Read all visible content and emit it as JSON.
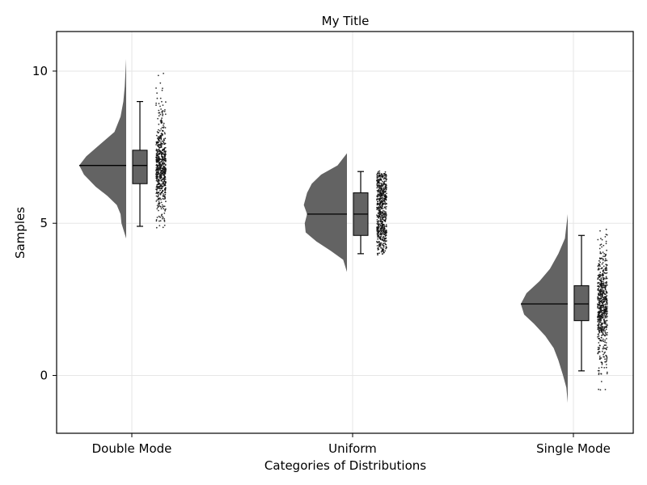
{
  "chart_data": {
    "type": "raincloud",
    "title": "My Title",
    "xlabel": "Categories of Distributions",
    "ylabel": "Samples",
    "ylim": [
      -1.9,
      11.3
    ],
    "yticks": [
      0,
      5,
      10
    ],
    "grid": true,
    "colors": {
      "fill": "#636363",
      "points": "#111111",
      "frame": "#000000",
      "grid": "#e6e6e6"
    },
    "categories": [
      "Double Mode",
      "Uniform",
      "Single Mode"
    ],
    "distributions": [
      {
        "category": "Double Mode",
        "min": 4.9,
        "q1": 6.3,
        "median": 6.9,
        "q3": 7.4,
        "max": 9.0,
        "range": [
          4.85,
          10.0
        ],
        "density_profile": [
          [
            4.5,
            0.0
          ],
          [
            5.0,
            0.1
          ],
          [
            5.3,
            0.12
          ],
          [
            5.6,
            0.2
          ],
          [
            5.9,
            0.4
          ],
          [
            6.2,
            0.65
          ],
          [
            6.6,
            0.9
          ],
          [
            6.9,
            1.0
          ],
          [
            7.2,
            0.85
          ],
          [
            7.6,
            0.55
          ],
          [
            8.0,
            0.25
          ],
          [
            8.5,
            0.12
          ],
          [
            9.0,
            0.06
          ],
          [
            9.5,
            0.03
          ],
          [
            10.4,
            0.0
          ]
        ]
      },
      {
        "category": "Uniform",
        "min": 4.0,
        "q1": 4.6,
        "median": 5.3,
        "q3": 6.0,
        "max": 6.7,
        "range": [
          3.95,
          6.75
        ],
        "density_profile": [
          [
            3.4,
            0.0
          ],
          [
            3.8,
            0.08
          ],
          [
            4.1,
            0.35
          ],
          [
            4.4,
            0.65
          ],
          [
            4.7,
            0.88
          ],
          [
            5.0,
            0.9
          ],
          [
            5.3,
            0.85
          ],
          [
            5.6,
            0.92
          ],
          [
            6.0,
            0.85
          ],
          [
            6.3,
            0.75
          ],
          [
            6.6,
            0.55
          ],
          [
            6.9,
            0.2
          ],
          [
            7.3,
            0.0
          ]
        ]
      },
      {
        "category": "Single Mode",
        "min": 0.15,
        "q1": 1.8,
        "median": 2.35,
        "q3": 2.95,
        "max": 4.6,
        "range": [
          -0.55,
          4.8
        ],
        "density_profile": [
          [
            -0.9,
            0.0
          ],
          [
            -0.4,
            0.03
          ],
          [
            0.0,
            0.1
          ],
          [
            0.5,
            0.2
          ],
          [
            0.9,
            0.3
          ],
          [
            1.3,
            0.48
          ],
          [
            1.7,
            0.72
          ],
          [
            2.0,
            0.93
          ],
          [
            2.35,
            1.0
          ],
          [
            2.7,
            0.88
          ],
          [
            3.1,
            0.6
          ],
          [
            3.5,
            0.38
          ],
          [
            4.0,
            0.2
          ],
          [
            4.5,
            0.06
          ],
          [
            5.3,
            0.0
          ]
        ]
      }
    ]
  }
}
